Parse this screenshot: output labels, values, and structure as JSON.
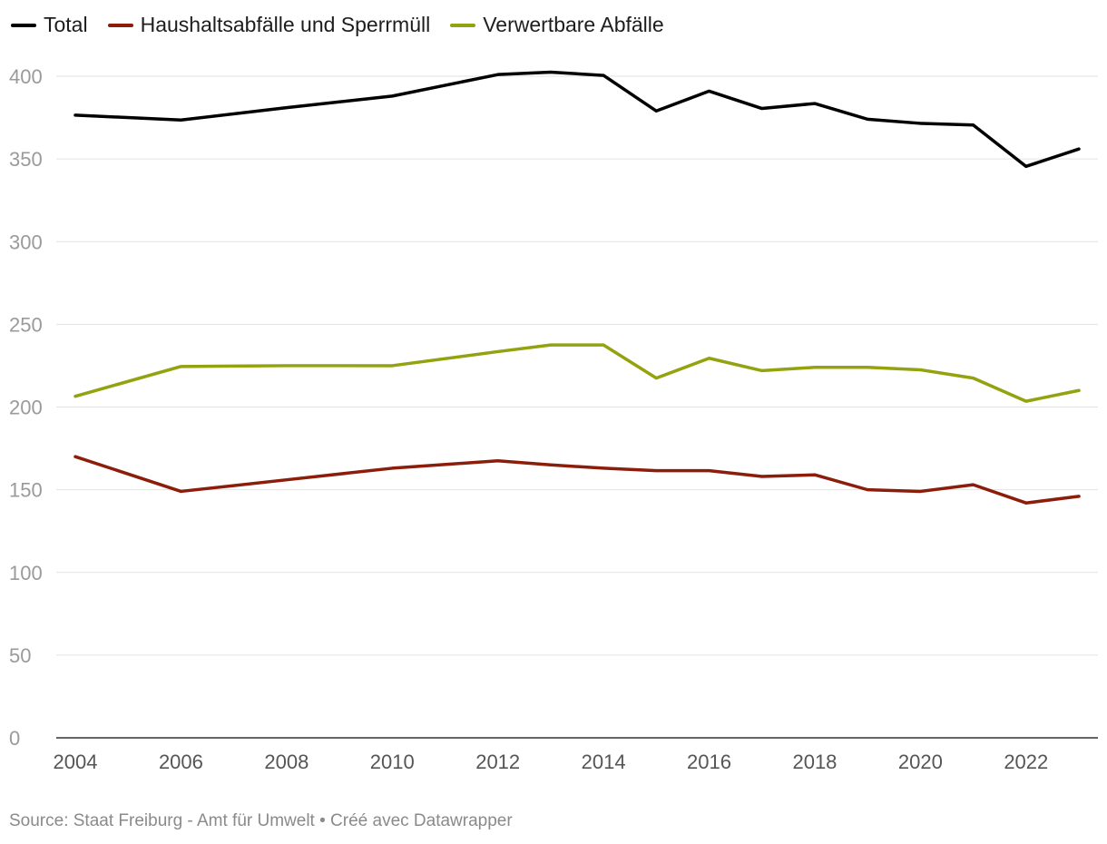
{
  "chart_data": {
    "type": "line",
    "title": "",
    "xlabel": "",
    "ylabel": "",
    "x": [
      2004,
      2006,
      2008,
      2010,
      2012,
      2013,
      2014,
      2015,
      2016,
      2017,
      2018,
      2019,
      2020,
      2021,
      2022,
      2023
    ],
    "xticks": [
      "2004",
      "2006",
      "2008",
      "2010",
      "2012",
      "2014",
      "2016",
      "2018",
      "2020",
      "2022"
    ],
    "xlim": [
      2004,
      2023
    ],
    "yticks": [
      "0",
      "50",
      "100",
      "150",
      "200",
      "250",
      "300",
      "350",
      "400"
    ],
    "ylim": [
      0,
      400
    ],
    "grid": true,
    "legend_position": "top-left",
    "series": [
      {
        "name": "Total",
        "color": "#000000",
        "values": [
          376.5,
          373.5,
          381,
          388,
          401,
          402.5,
          400.5,
          379,
          391,
          380.5,
          383.5,
          374,
          371.5,
          370.5,
          345.5,
          356
        ]
      },
      {
        "name": "Haushaltsabfälle und Sperrmüll",
        "color": "#8c1d0b",
        "values": [
          170,
          149,
          156,
          163,
          167.5,
          165,
          163,
          161.5,
          161.5,
          158,
          159,
          150,
          149,
          153,
          142,
          146
        ]
      },
      {
        "name": "Verwertbare Abfälle",
        "color": "#93a20e",
        "values": [
          206.5,
          224.5,
          225,
          225,
          233.5,
          237.5,
          237.5,
          217.5,
          229.5,
          222,
          224,
          224,
          222.5,
          217.5,
          203.5,
          210
        ]
      }
    ]
  },
  "footer": {
    "source": "Source: Staat Freiburg - Amt für Umwelt • Créé avec Datawrapper"
  }
}
